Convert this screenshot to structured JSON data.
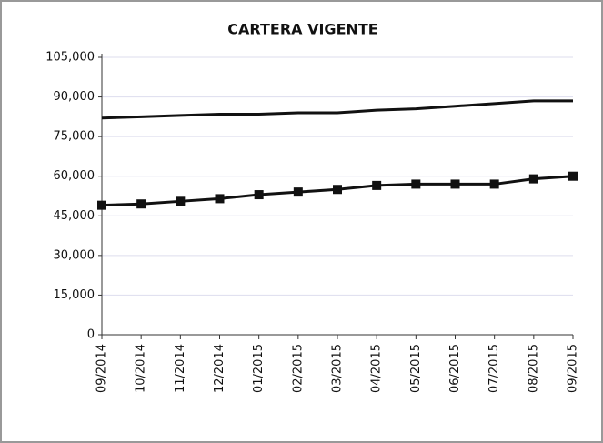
{
  "chart_data": {
    "type": "line",
    "title": "CARTERA VIGENTE",
    "categories": [
      "09/2014",
      "10/2014",
      "11/2014",
      "12/2014",
      "01/2015",
      "02/2015",
      "03/2015",
      "04/2015",
      "05/2015",
      "06/2015",
      "07/2015",
      "08/2015",
      "09/2015"
    ],
    "series": [
      {
        "color": "#111111",
        "marker": "none",
        "values": [
          82000,
          82500,
          83000,
          83500,
          83500,
          84000,
          84000,
          85000,
          85500,
          86500,
          87500,
          88500,
          88500
        ]
      },
      {
        "color": "#111111",
        "marker": "square",
        "values": [
          49000,
          49500,
          50500,
          51500,
          53000,
          54000,
          55000,
          56500,
          57000,
          57000,
          57000,
          59000,
          60000
        ]
      }
    ],
    "ylim": [
      0,
      105000
    ],
    "yticks": [
      0,
      {
        "value": 15000,
        "label": "15,000"
      },
      {
        "value": 30000,
        "label": "30,000"
      },
      {
        "value": 45000,
        "label": "45,000"
      },
      {
        "value": 60000,
        "label": "60,000"
      },
      {
        "value": 75000,
        "label": "75,000"
      },
      {
        "value": 90000,
        "label": "90,000"
      },
      {
        "value": 105000,
        "label": "105,000"
      }
    ],
    "grid": true
  }
}
